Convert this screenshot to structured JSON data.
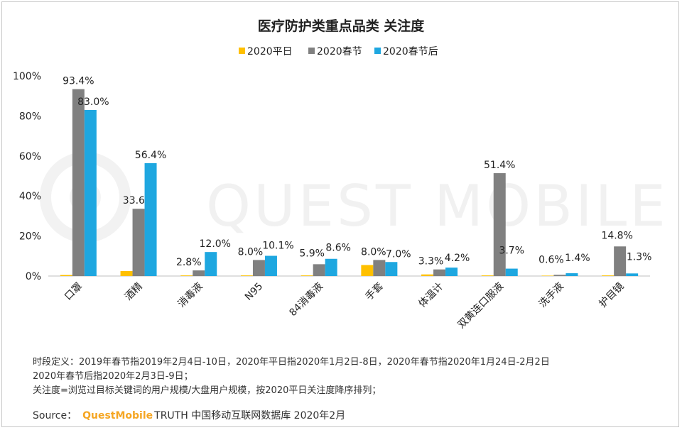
{
  "chart_data": {
    "type": "bar",
    "title": "医疗防护类重点品类 关注度",
    "categories": [
      "口罩",
      "酒精",
      "消毒液",
      "N95",
      "84消毒液",
      "手套",
      "体温计",
      "双黄连口服液",
      "洗手液",
      "护目镜"
    ],
    "series": [
      {
        "name": "2020平日",
        "color": "#ffc000",
        "values": [
          0.5,
          2.5,
          0.3,
          0.3,
          0.3,
          5.5,
          0.8,
          0.3,
          0.2,
          0.3
        ],
        "labels": [
          "",
          "",
          "",
          "",
          "",
          "",
          "",
          "",
          "",
          ""
        ]
      },
      {
        "name": "2020春节",
        "color": "#808080",
        "values": [
          93.4,
          33.6,
          2.8,
          8.0,
          5.9,
          8.0,
          3.3,
          51.4,
          0.6,
          14.8
        ],
        "labels": [
          "93.4%",
          "33.6%",
          "2.8%",
          "8.0%",
          "5.9%",
          "8.0%",
          "3.3%",
          "51.4%",
          "0.6%",
          "14.8%"
        ]
      },
      {
        "name": "2020春节后",
        "color": "#1ea7e0",
        "values": [
          83.0,
          56.4,
          12.0,
          10.1,
          8.6,
          7.0,
          4.2,
          3.7,
          1.4,
          1.3
        ],
        "labels": [
          "83.0%",
          "56.4%",
          "12.0%",
          "10.1%",
          "8.6%",
          "7.0%",
          "4.2%",
          "3.7%",
          "1.4%",
          "1.3%"
        ]
      }
    ],
    "yticks": [
      "0%",
      "20%",
      "40%",
      "60%",
      "80%",
      "100%"
    ],
    "ylim": [
      0,
      100
    ],
    "legend_position": "top",
    "grid": false
  },
  "watermark": "QUEST MOBILE",
  "notes": {
    "line1": "时段定义：2019年春节指2019年2月4日-10日，2020年平日指2020年1月2日-8日，2020年春节指2020年1月24日-2月2日",
    "line2": "2020年春节后指2020年2月3日-9日；",
    "line3": "关注度=浏览过目标关键词的用户规模/大盘用户规模，按2020平日关注度降序排列；"
  },
  "source": {
    "label": "Source：",
    "brand": "QuestMobile",
    "text": "TRUTH 中国移动互联网数据库 2020年2月"
  }
}
